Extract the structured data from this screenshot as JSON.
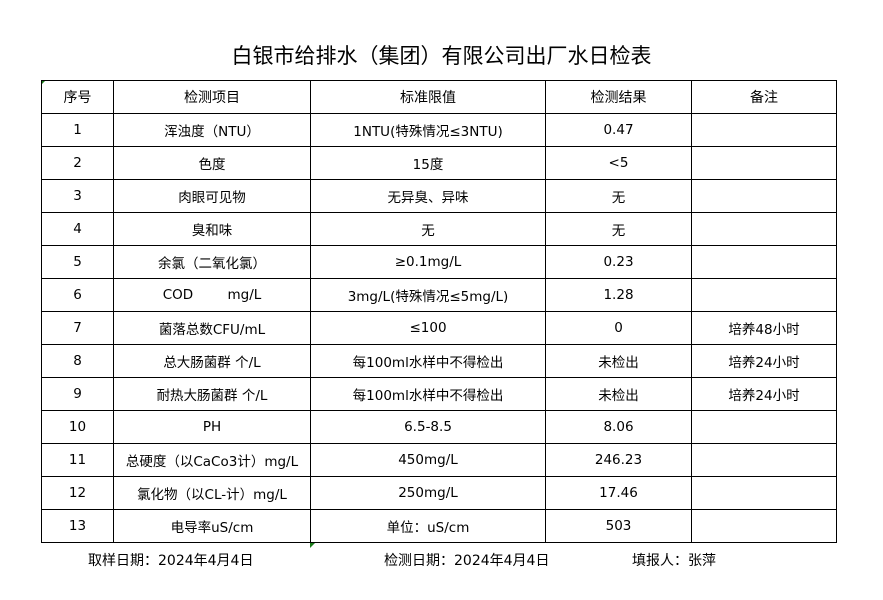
{
  "title": "白银市给排水（集团）有限公司出厂水日检表",
  "table": {
    "headers": [
      "序号",
      "检测项目",
      "标准限值",
      "检测结果",
      "备注"
    ],
    "rows": [
      [
        "1",
        "浑浊度（NTU）",
        "1NTU(特殊情况≤3NTU)",
        "0.47",
        ""
      ],
      [
        "2",
        "色度",
        "15度",
        "<5",
        ""
      ],
      [
        "3",
        "肉眼可见物",
        "无异臭、异味",
        "无",
        ""
      ],
      [
        "4",
        "臭和味",
        "无",
        "无",
        ""
      ],
      [
        "5",
        "余氯（二氧化氯）",
        "≥0.1mg/L",
        "0.23",
        ""
      ],
      [
        "6",
        "COD        mg/L",
        "3mg/L(特殊情况≤5mg/L)",
        "1.28",
        ""
      ],
      [
        "7",
        "菌落总数CFU/mL",
        "≤100",
        "0",
        "培养48小时"
      ],
      [
        "8",
        "总大肠菌群 个/L",
        "每100ml水样中不得检出",
        "未检出",
        "培养24小时"
      ],
      [
        "9",
        "耐热大肠菌群 个/L",
        "每100ml水样中不得检出",
        "未检出",
        "培养24小时"
      ],
      [
        "10",
        "PH",
        "6.5-8.5",
        "8.06",
        ""
      ],
      [
        "11",
        "总硬度（以CaCo3计）mg/L",
        "450mg/L",
        "246.23",
        ""
      ],
      [
        "12",
        "氯化物（以CL-计）mg/L",
        "250mg/L",
        "17.46",
        ""
      ],
      [
        "13",
        "电导率uS/cm",
        "单位：uS/cm",
        "503",
        ""
      ]
    ]
  },
  "footer": {
    "sample_date": "取样日期：2024年4月4日",
    "test_date": "检测日期：2024年4月4日",
    "reporter": "填报人：张萍"
  },
  "colors": {
    "cell_marker": "#1a7a1a"
  }
}
